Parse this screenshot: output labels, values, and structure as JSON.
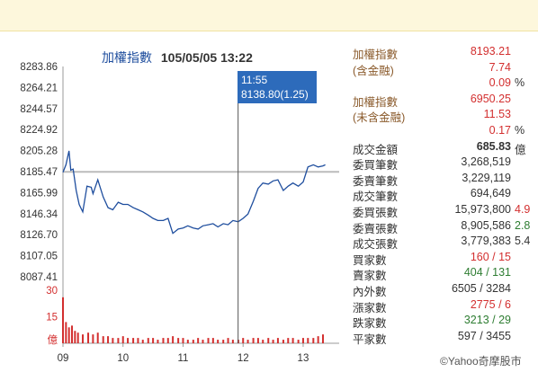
{
  "header": {
    "index_label": "加權指數",
    "datetime": "105/05/05 13:22"
  },
  "tooltip": {
    "time": "11:55",
    "value": "8138.80(1.25)"
  },
  "stats": [
    {
      "key": "加權指數",
      "value": "8193.21",
      "suffix": "",
      "color": "red"
    },
    {
      "key": "(含金融)",
      "value": "7.74",
      "suffix": "",
      "color": "red"
    },
    {
      "key": "",
      "value": "0.09",
      "suffix": "%",
      "color": "red"
    },
    {
      "key": "加權指數",
      "value": "6950.25",
      "suffix": "",
      "color": "red"
    },
    {
      "key": "(未含金融)",
      "value": "11.53",
      "suffix": "",
      "color": "red"
    },
    {
      "key": "",
      "value": "0.17",
      "suffix": "%",
      "color": "red"
    },
    {
      "key": "成交金額",
      "value": "685.83",
      "suffix": "億",
      "color": "bold"
    },
    {
      "key": "委買筆數",
      "value": "3,268,519",
      "suffix": "",
      "color": ""
    },
    {
      "key": "委賣筆數",
      "value": "3,229,119",
      "suffix": "",
      "color": ""
    },
    {
      "key": "成交筆數",
      "value": "694,649",
      "suffix": "",
      "color": ""
    },
    {
      "key": "委買張數",
      "value": "15,973,800",
      "suffix": "4.9",
      "color": "",
      "suffix_color": "red"
    },
    {
      "key": "委賣張數",
      "value": "8,905,586",
      "suffix": "2.8",
      "color": "",
      "suffix_color": "green"
    },
    {
      "key": "成交張數",
      "value": "3,779,383",
      "suffix": "5.4",
      "color": "",
      "suffix_color": ""
    },
    {
      "key": "買家數",
      "value": "160 / 15",
      "suffix": "",
      "color": "red"
    },
    {
      "key": "賣家數",
      "value": "404 / 131",
      "suffix": "",
      "color": "green"
    },
    {
      "key": "內外數",
      "value": "6505 / 3284",
      "suffix": "",
      "color": ""
    },
    {
      "key": "漲家數",
      "value": "2775 / 6",
      "suffix": "",
      "color": "red"
    },
    {
      "key": "跌家數",
      "value": "3213 / 29",
      "suffix": "",
      "color": "green"
    },
    {
      "key": "平家數",
      "value": "597 / 3455",
      "suffix": "",
      "color": ""
    }
  ],
  "copyright": "©Yahoo奇摩股市",
  "colors": {
    "line": "#1f4e9e",
    "ref": "#bbbbbb",
    "volume": "#d32f2f",
    "cursor": "#555555",
    "axis_red": "#d32f2f"
  },
  "chart_data": {
    "type": "line",
    "ylim": [
      8087.41,
      8283.86
    ],
    "yticks": [
      "8283.86",
      "8264.21",
      "8244.57",
      "8224.92",
      "8205.28",
      "8185.47",
      "8165.99",
      "8146.34",
      "8126.70",
      "8107.05",
      "8087.41"
    ],
    "xticks": [
      "09",
      "10",
      "11",
      "12",
      "13"
    ],
    "reference": 8185.47,
    "cursor_time": 11.9167,
    "series": [
      {
        "x": [
          9.0,
          9.05,
          9.1,
          9.13,
          9.17,
          9.22,
          9.27,
          9.33,
          9.4,
          9.47,
          9.5,
          9.58,
          9.67,
          9.75,
          9.83,
          9.92,
          10.0,
          10.08,
          10.17,
          10.25,
          10.33,
          10.42,
          10.5,
          10.58,
          10.67,
          10.75,
          10.83,
          10.92,
          11.0,
          11.08,
          11.17,
          11.25,
          11.33,
          11.42,
          11.5,
          11.58,
          11.67,
          11.75,
          11.83,
          11.9167,
          12.0,
          12.08,
          12.17,
          12.25,
          12.33,
          12.42,
          12.5,
          12.58,
          12.67,
          12.75,
          12.83,
          12.92,
          13.0,
          13.08,
          13.17,
          13.25,
          13.33,
          13.37
        ],
        "y": [
          8185,
          8192,
          8205,
          8187,
          8188,
          8168,
          8155,
          8148,
          8172,
          8171,
          8165,
          8178,
          8162,
          8152,
          8150,
          8157,
          8155,
          8155,
          8152,
          8150,
          8148,
          8145,
          8142,
          8140,
          8140,
          8142,
          8128,
          8132,
          8133,
          8135,
          8133,
          8132,
          8135,
          8136,
          8137,
          8134,
          8137,
          8136,
          8140,
          8138.8,
          8142,
          8146,
          8158,
          8170,
          8175,
          8174,
          8177,
          8178,
          8168,
          8172,
          8175,
          8172,
          8176,
          8190,
          8192,
          8190,
          8191,
          8192
        ]
      }
    ],
    "volume": {
      "ylim": [
        0,
        30
      ],
      "yticks": [
        "30",
        "15",
        "億"
      ],
      "x": [
        9.0,
        9.05,
        9.1,
        9.15,
        9.2,
        9.25,
        9.33,
        9.42,
        9.5,
        9.58,
        9.67,
        9.75,
        9.83,
        9.92,
        10.0,
        10.08,
        10.17,
        10.25,
        10.33,
        10.42,
        10.5,
        10.58,
        10.67,
        10.75,
        10.83,
        10.92,
        11.0,
        11.08,
        11.17,
        11.25,
        11.33,
        11.42,
        11.5,
        11.58,
        11.67,
        11.75,
        11.83,
        11.92,
        12.0,
        12.08,
        12.17,
        12.25,
        12.33,
        12.42,
        12.5,
        12.58,
        12.67,
        12.75,
        12.83,
        12.92,
        13.0,
        13.08,
        13.17,
        13.25,
        13.33
      ],
      "values": [
        26,
        12,
        9,
        10,
        7,
        6,
        5,
        6,
        5,
        6,
        4,
        4,
        3,
        3,
        4,
        3,
        3,
        3,
        2,
        3,
        3,
        2,
        3,
        3,
        4,
        3,
        3,
        2,
        2,
        3,
        2,
        3,
        3,
        2,
        2,
        3,
        2,
        2,
        3,
        2,
        3,
        3,
        2,
        3,
        2,
        3,
        2,
        3,
        3,
        2,
        3,
        3,
        3,
        4,
        5
      ]
    }
  }
}
